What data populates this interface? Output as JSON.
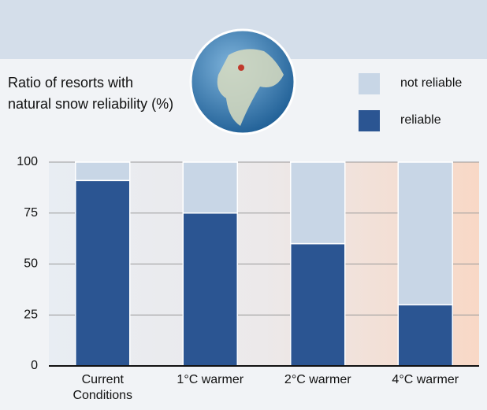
{
  "chart_data": {
    "type": "stacked_bar",
    "title": "Ratio of resorts with natural snow reliability (%)",
    "categories": [
      "Current Conditions",
      "1°C warmer",
      "2°C warmer",
      "4°C warmer"
    ],
    "series": [
      {
        "name": "not reliable",
        "color": "#c8d6e6",
        "values": [
          9,
          25,
          40,
          70
        ]
      },
      {
        "name": "reliable",
        "color": "#2b5592",
        "values": [
          91,
          75,
          60,
          30
        ]
      }
    ],
    "ylim": [
      0,
      100
    ],
    "yticks": [
      0,
      25,
      50,
      75,
      100
    ],
    "grid": true
  }
}
